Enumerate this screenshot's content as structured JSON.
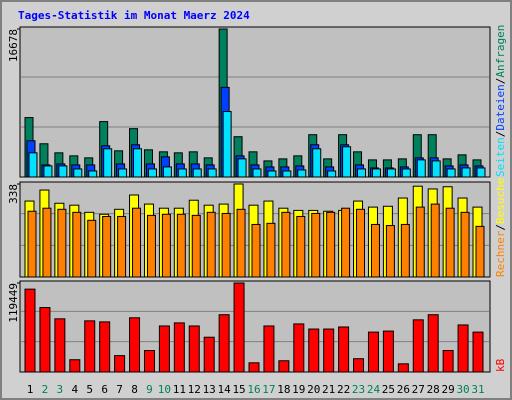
{
  "chart_data": [
    {
      "type": "bar",
      "title": "Tages-Statistik im Monat Maerz 2024",
      "ylim": [
        0,
        16678
      ],
      "yticks": [
        16678
      ],
      "legend_separator": "/",
      "series": [
        {
          "name": "Anfragen",
          "color": "#00805c",
          "values": [
            6696,
            3745,
            2724,
            2383,
            2156,
            6242,
            2951,
            5448,
            3064,
            2837,
            2724,
            2837,
            2156,
            16678,
            4540,
            2837,
            1816,
            2043,
            2383,
            4767,
            2043,
            4767,
            2837,
            1929,
            1929,
            2043,
            4767,
            4767,
            2043,
            2497,
            1929
          ]
        },
        {
          "name": "Dateien",
          "color": "#0040ff",
          "values": [
            4086,
            1362,
            1475,
            1362,
            1362,
            3518,
            1475,
            3632,
            1475,
            2270,
            1475,
            1475,
            1362,
            10101,
            2383,
            1362,
            1135,
            1135,
            1248,
            3632,
            1135,
            3632,
            1362,
            1021,
            1021,
            1135,
            2156,
            2156,
            1248,
            1362,
            1248
          ]
        },
        {
          "name": "Seiten",
          "color": "#00e0ff",
          "values": [
            2724,
            1248,
            1248,
            908,
            681,
            3178,
            908,
            3178,
            908,
            1135,
            908,
            908,
            908,
            7377,
            2043,
            908,
            681,
            681,
            794,
            3178,
            681,
            3405,
            908,
            908,
            908,
            908,
            1929,
            1816,
            908,
            1021,
            1021
          ]
        }
      ]
    },
    {
      "type": "bar",
      "ylim": [
        0,
        338
      ],
      "yticks": [
        338
      ],
      "legend_separator": "/",
      "series": [
        {
          "name": "Besuche",
          "color": "#ffff00",
          "values": [
            276,
            316,
            268,
            261,
            235,
            228,
            246,
            298,
            265,
            250,
            250,
            279,
            261,
            265,
            338,
            261,
            276,
            250,
            242,
            242,
            239,
            242,
            276,
            254,
            257,
            287,
            330,
            320,
            328,
            287,
            254
          ]
        },
        {
          "name": "Rechner",
          "color": "#ff8000",
          "values": [
            239,
            250,
            246,
            235,
            206,
            220,
            220,
            250,
            224,
            228,
            228,
            224,
            235,
            231,
            246,
            191,
            195,
            235,
            220,
            231,
            235,
            250,
            246,
            191,
            187,
            191,
            254,
            265,
            250,
            235,
            184
          ]
        }
      ]
    },
    {
      "type": "bar",
      "ylim": [
        0,
        119449
      ],
      "yticks": [
        119449
      ],
      "categories": [
        "1",
        "2",
        "3",
        "4",
        "5",
        "6",
        "7",
        "8",
        "9",
        "10",
        "11",
        "12",
        "13",
        "14",
        "15",
        "16",
        "17",
        "18",
        "19",
        "20",
        "21",
        "22",
        "23",
        "24",
        "25",
        "26",
        "27",
        "28",
        "29",
        "30",
        "31"
      ],
      "category_colors": [
        "#000000",
        "#00805c",
        "#00805c",
        "#000000",
        "#000000",
        "#000000",
        "#000000",
        "#000000",
        "#00805c",
        "#00805c",
        "#000000",
        "#000000",
        "#000000",
        "#000000",
        "#000000",
        "#00805c",
        "#00805c",
        "#000000",
        "#000000",
        "#000000",
        "#000000",
        "#000000",
        "#00805c",
        "#00805c",
        "#000000",
        "#000000",
        "#000000",
        "#000000",
        "#000000",
        "#00805c",
        "#00805c"
      ],
      "series": [
        {
          "name": "kB",
          "color": "#ff0000",
          "values": [
            111213,
            86499,
            71396,
            16476,
            68650,
            67277,
            21968,
            72769,
            28833,
            61785,
            65904,
            61785,
            46682,
            76888,
            119449,
            12357,
            61785,
            15103,
            64531,
            57666,
            57666,
            60412,
            17849,
            53547,
            54920,
            10984,
            70023,
            76888,
            28833,
            63158,
            53547
          ]
        }
      ]
    }
  ]
}
